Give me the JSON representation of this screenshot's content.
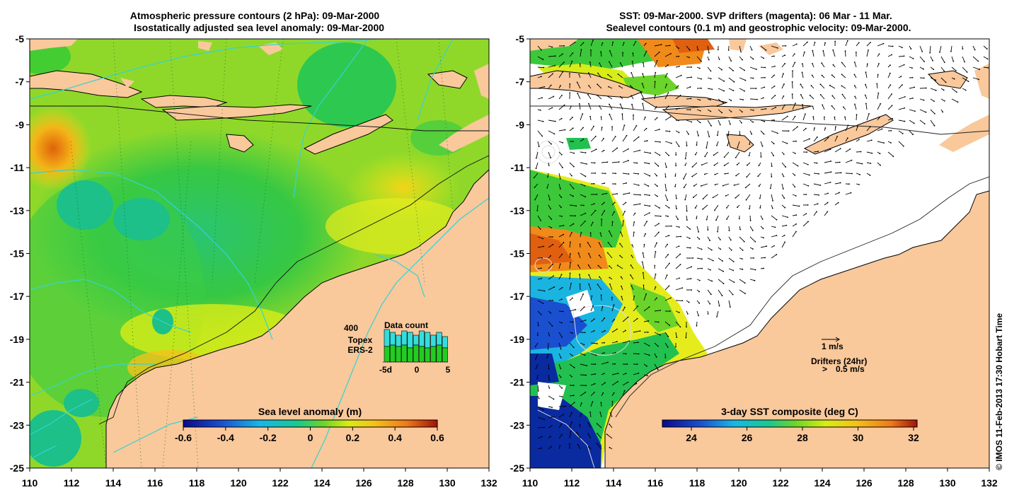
{
  "left_panel": {
    "title_line1": "Atmospheric pressure contours (2 hPa): 09-Mar-2000",
    "title_line2": "Isostatically adjusted sea level anomaly: 09-Mar-2000",
    "colorbar_title": "Sea level anomaly (m)",
    "colorbar_ticks": [
      "-0.6",
      "-0.4",
      "-0.2",
      "0",
      "0.2",
      "0.4",
      "0.6"
    ],
    "inset": {
      "title": "Data count",
      "max_label": "400",
      "series1": "Topex",
      "series2": "ERS-2",
      "xticks": [
        "-5d",
        "0",
        "5"
      ],
      "topex_color": "#33dddd",
      "ers_color": "#22cc22"
    }
  },
  "right_panel": {
    "title_line1": "SST: 09-Mar-2000. SVP drifters (magenta): 06 Mar - 11 Mar.",
    "title_line2": "Sealevel contours (0.1 m) and geostrophic velocity: 09-Mar-2000.",
    "colorbar_title": "3-day SST composite (deg C)",
    "colorbar_ticks": [
      "24",
      "26",
      "28",
      "30",
      "32"
    ],
    "legend_velocity": "1 m/s",
    "legend_drifters": "Drifters (24hr)",
    "legend_drifter_speed": "0.5 m/s",
    "drifter_symbol": ">",
    "drifter_color": "#ff00ff"
  },
  "axes": {
    "x_ticks": [
      "110",
      "112",
      "114",
      "116",
      "118",
      "120",
      "122",
      "124",
      "126",
      "128",
      "130",
      "132"
    ],
    "y_ticks": [
      "-5",
      "-7",
      "-9",
      "-11",
      "-13",
      "-15",
      "-17",
      "-19",
      "-21",
      "-23",
      "-25"
    ]
  },
  "copyright": "© IMOS 11-Feb-2013 17:30 Hobart Time",
  "colors": {
    "land": "#f9c89b",
    "contour": "#35d3d3"
  }
}
